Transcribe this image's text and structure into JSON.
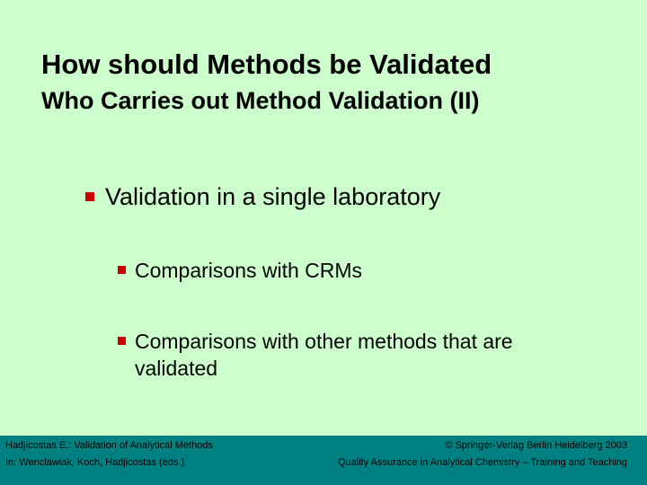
{
  "slide": {
    "title": "How should Methods be Validated",
    "subtitle": "Who Carries out Method Validation (II)",
    "bullets": {
      "level1": "Validation in a single laboratory",
      "level2_a": "Comparisons with CRMs",
      "level2_b_line1": "Comparisons with other methods that are",
      "level2_b_line2": "validated"
    },
    "bullet_marker_color": "#cc0000",
    "background_color": "#ccffcc"
  },
  "footer": {
    "left_line1": "Hadjicostas E.: Validation of Analytical Methods",
    "left_line2": "In:  Wenclawiak, Koch, Hadjicostas (eds.)",
    "right_line1": "© Springer-Verlag Berlin Heidelberg 2003",
    "right_line2": "Quality Assurance in Analytical Chemistry – Training and Teaching",
    "background_color": "#008080"
  }
}
